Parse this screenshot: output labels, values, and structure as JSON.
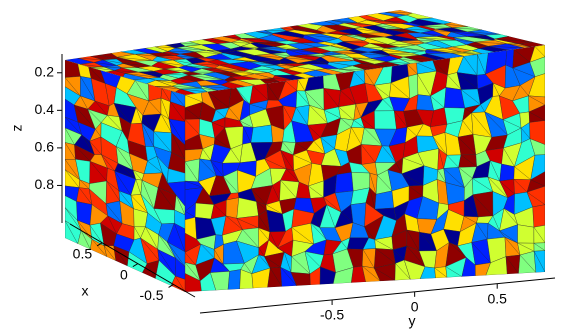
{
  "chart_data": {
    "type": "grains3d",
    "xlabel": "x",
    "ylabel": "y",
    "zlabel": "z",
    "xlim": [
      0.95,
      -0.8
    ],
    "xticks": [
      0.5,
      0,
      -0.5
    ],
    "ylim": [
      -1.3,
      0.85
    ],
    "yticks": [
      -0.5,
      0,
      0.5
    ],
    "zlim": [
      0.1,
      1.0
    ],
    "zticks": [
      0.2,
      0.4,
      0.6,
      0.8
    ],
    "colormap": [
      "#00008f",
      "#0020ff",
      "#0070ff",
      "#00c0ff",
      "#30ffd0",
      "#80ff80",
      "#d0ff30",
      "#ffe000",
      "#ff9000",
      "#ff3000",
      "#d00000",
      "#8f0000"
    ]
  }
}
